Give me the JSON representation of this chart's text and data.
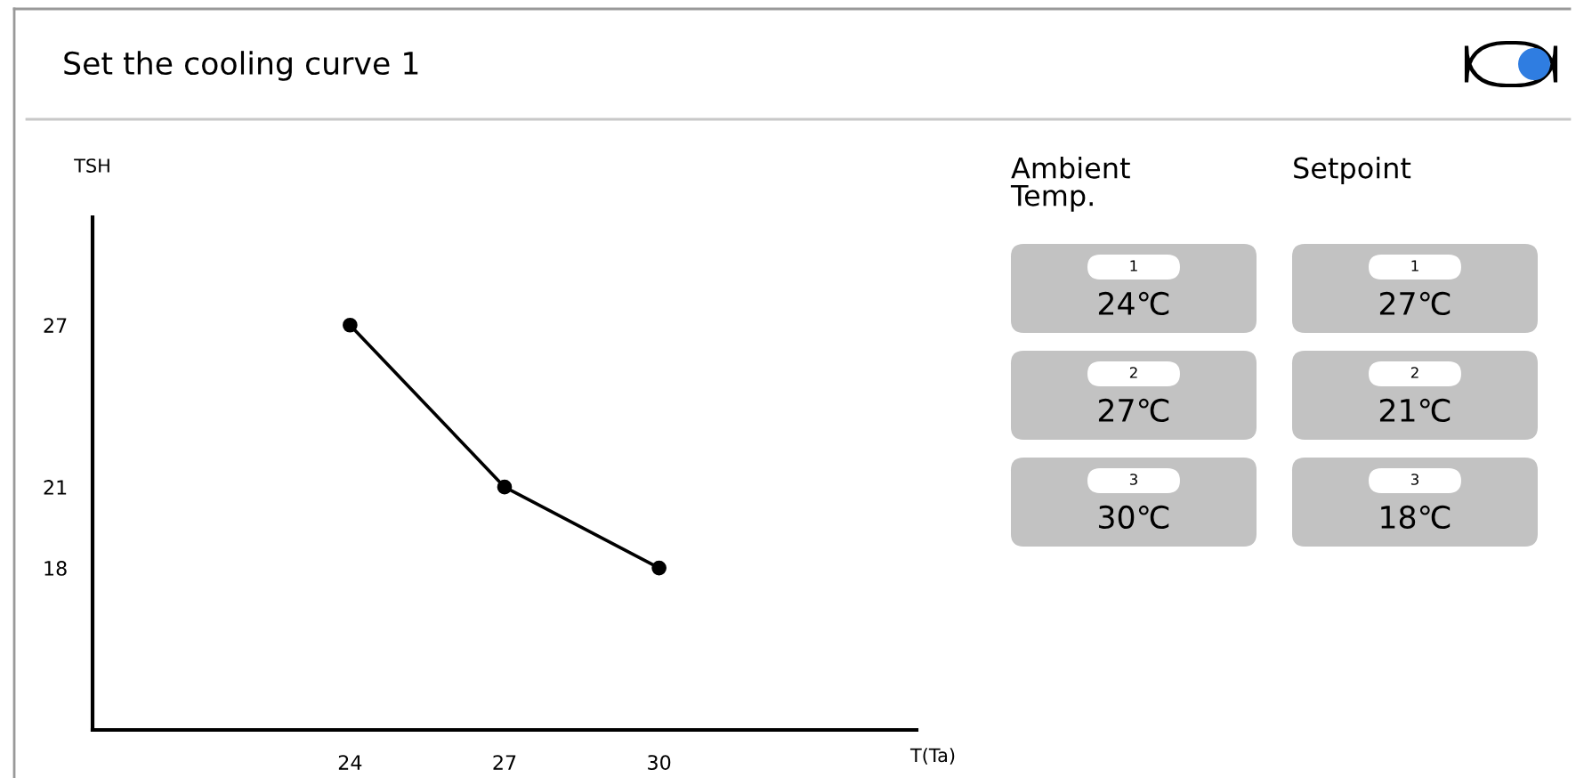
{
  "chart_data": [
    {
      "type": "line",
      "title": "Set the cooling curve 1",
      "xlabel": "T(Ta)",
      "ylabel": "TSH",
      "x": [
        24,
        27,
        30
      ],
      "series": [
        {
          "color": "#000000",
          "values": [
            27,
            21,
            18
          ]
        }
      ],
      "xlim": [
        19,
        35
      ],
      "ylim": [
        12,
        31
      ],
      "xticks": [
        24,
        27,
        30
      ],
      "yticks": [
        18,
        21,
        27
      ],
      "marker": "circle",
      "line_style": "solid",
      "grid": false,
      "legend": false
    },
    {
      "type": "other",
      "categories": [
        "Ambient Temp.",
        "Setpoint"
      ],
      "y_categories": [
        "1",
        "2",
        "3"
      ],
      "cell_labels": [
        [
          "24℃",
          "27℃"
        ],
        [
          "27℃",
          "21℃"
        ],
        [
          "30℃",
          "18℃"
        ]
      ]
    }
  ]
}
